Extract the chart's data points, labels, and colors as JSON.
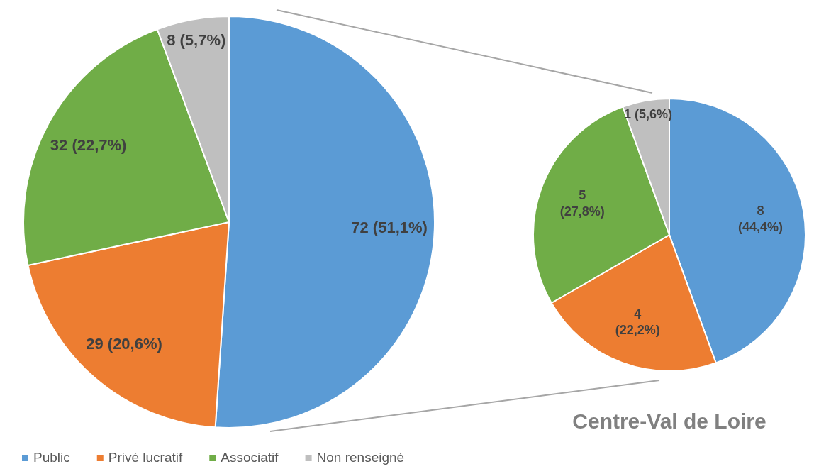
{
  "chart_data": [
    {
      "type": "pie",
      "categories": [
        "Public",
        "Privé lucratif",
        "Associatif",
        "Non renseigné"
      ],
      "values": [
        72,
        29,
        32,
        8
      ],
      "colors": [
        "#5b9bd5",
        "#ed7d31",
        "#70ad47",
        "#bfbfbf"
      ],
      "value_labels": [
        "72 (51,1%)",
        "29 (20,6%)",
        "32 (22,7%)",
        "8 (5,7%)"
      ],
      "legend": "bottom"
    },
    {
      "type": "pie",
      "title": "Centre-Val de Loire",
      "categories": [
        null,
        null,
        null,
        null
      ],
      "values": [
        8,
        4,
        5,
        1
      ],
      "colors": [
        "#5b9bd5",
        "#ed7d31",
        "#70ad47",
        "#bfbfbf"
      ],
      "value_labels": [
        "8 (44,4%)",
        "4 (22,2%)",
        "5 (27,8%)",
        "1 (5,6%)"
      ]
    }
  ]
}
